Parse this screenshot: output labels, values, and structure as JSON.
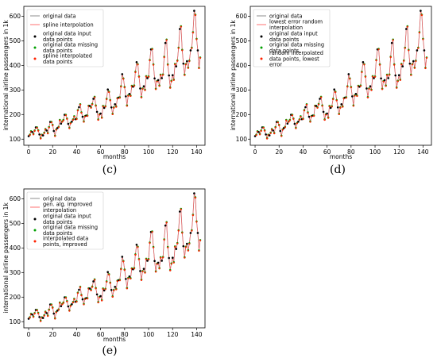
{
  "chart_data": [
    {
      "type": "line",
      "caption": "(c)",
      "xlabel": "months",
      "ylabel": "international airline passengers in 1k",
      "xlim": [
        -4,
        147
      ],
      "ylim": [
        75,
        640
      ],
      "xticks": [
        0,
        20,
        40,
        60,
        80,
        100,
        120,
        140
      ],
      "yticks": [
        100,
        200,
        300,
        400,
        500,
        600
      ],
      "legend_position": "top-left",
      "legend": [
        "original data",
        "spline interpolation",
        "original data input data points",
        "original data missing data points",
        "spline interpolated data points"
      ],
      "colors": {
        "original": "#808080",
        "interp": "#ff6060",
        "input": "#000000",
        "missing": "#00a000",
        "interp_points": "#ff2000"
      }
    },
    {
      "type": "line",
      "caption": "(d)",
      "xlabel": "months",
      "ylabel": "international airline passengers in 1k",
      "xlim": [
        -4,
        147
      ],
      "ylim": [
        75,
        640
      ],
      "xticks": [
        0,
        20,
        40,
        60,
        80,
        100,
        120,
        140
      ],
      "yticks": [
        100,
        200,
        300,
        400,
        500,
        600
      ],
      "legend_position": "top-left",
      "legend": [
        "original data",
        "lowest error random interpolation",
        "original data input data points",
        "original data missing data points",
        "random interpolated data points, lowest error"
      ],
      "colors": {
        "original": "#808080",
        "interp": "#ff6060",
        "input": "#000000",
        "missing": "#00a000",
        "interp_points": "#ff2000"
      }
    },
    {
      "type": "line",
      "caption": "(e)",
      "xlabel": "months",
      "ylabel": "international airline passengers in 1k",
      "xlim": [
        -4,
        147
      ],
      "ylim": [
        75,
        640
      ],
      "xticks": [
        0,
        20,
        40,
        60,
        80,
        100,
        120,
        140
      ],
      "yticks": [
        100,
        200,
        300,
        400,
        500,
        600
      ],
      "legend_position": "top-left",
      "legend": [
        "original data",
        "gen. alg. improved interpolation",
        "original data input data points",
        "original data missing data points",
        "interpolated data points, improved"
      ],
      "colors": {
        "original": "#808080",
        "interp": "#ff6060",
        "input": "#000000",
        "missing": "#00a000",
        "interp_points": "#ff2000"
      }
    }
  ],
  "series": {
    "name": "international airline passengers in 1k",
    "values": [
      112,
      118,
      132,
      129,
      121,
      135,
      148,
      148,
      136,
      119,
      104,
      118,
      115,
      126,
      141,
      135,
      125,
      149,
      170,
      170,
      158,
      133,
      114,
      140,
      145,
      150,
      178,
      163,
      172,
      178,
      199,
      199,
      184,
      162,
      146,
      166,
      171,
      180,
      193,
      181,
      183,
      218,
      230,
      242,
      209,
      191,
      172,
      194,
      196,
      196,
      236,
      235,
      229,
      243,
      264,
      272,
      237,
      211,
      180,
      201,
      204,
      188,
      235,
      227,
      234,
      264,
      302,
      293,
      259,
      229,
      203,
      229,
      242,
      233,
      267,
      269,
      270,
      315,
      364,
      347,
      312,
      274,
      237,
      278,
      284,
      277,
      317,
      313,
      318,
      374,
      413,
      405,
      355,
      306,
      271,
      306,
      315,
      301,
      356,
      348,
      355,
      422,
      465,
      467,
      404,
      347,
      305,
      336,
      340,
      318,
      362,
      348,
      363,
      435,
      491,
      505,
      404,
      359,
      310,
      337,
      360,
      342,
      406,
      396,
      420,
      472,
      548,
      559,
      463,
      407,
      362,
      405,
      417,
      391,
      419,
      461,
      472,
      535,
      622,
      606,
      508,
      461,
      390,
      432
    ]
  }
}
